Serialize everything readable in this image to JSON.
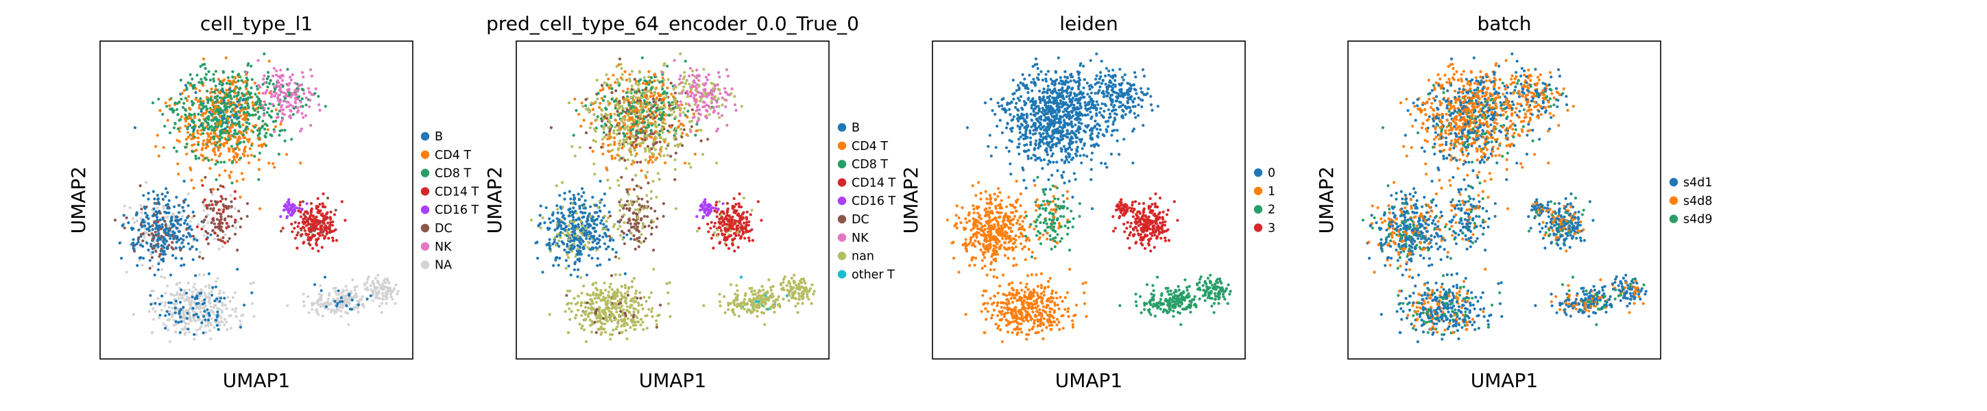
{
  "chart_data": [
    {
      "type": "scatter",
      "title": "cell_type_l1",
      "xlabel": "UMAP1",
      "ylabel": "UMAP2",
      "grid": false,
      "legend_placement": "right",
      "series": [
        {
          "name": "B",
          "color": "#1f77b4"
        },
        {
          "name": "CD4 T",
          "color": "#ff7f0e"
        },
        {
          "name": "CD8 T",
          "color": "#279e68"
        },
        {
          "name": "CD14 T",
          "color": "#d62728"
        },
        {
          "name": "CD16 T",
          "color": "#aa40fc"
        },
        {
          "name": "DC",
          "color": "#8c564b"
        },
        {
          "name": "NK",
          "color": "#e377c2"
        },
        {
          "name": "NA",
          "color": "#d3d3d3"
        }
      ]
    },
    {
      "type": "scatter",
      "title": "pred_cell_type_64_encoder_0.0_True_0",
      "xlabel": "UMAP1",
      "ylabel": "UMAP2",
      "grid": false,
      "legend_placement": "right",
      "series": [
        {
          "name": "B",
          "color": "#1f77b4"
        },
        {
          "name": "CD4 T",
          "color": "#ff7f0e"
        },
        {
          "name": "CD8 T",
          "color": "#279e68"
        },
        {
          "name": "CD14 T",
          "color": "#d62728"
        },
        {
          "name": "CD16 T",
          "color": "#aa40fc"
        },
        {
          "name": "DC",
          "color": "#8c564b"
        },
        {
          "name": "NK",
          "color": "#e377c2"
        },
        {
          "name": "nan",
          "color": "#b5bd61"
        },
        {
          "name": "other T",
          "color": "#17becf"
        }
      ]
    },
    {
      "type": "scatter",
      "title": "leiden",
      "xlabel": "UMAP1",
      "ylabel": "UMAP2",
      "grid": false,
      "legend_placement": "right",
      "series": [
        {
          "name": "0",
          "color": "#1f77b4"
        },
        {
          "name": "1",
          "color": "#ff7f0e"
        },
        {
          "name": "2",
          "color": "#279e68"
        },
        {
          "name": "3",
          "color": "#d62728"
        }
      ]
    },
    {
      "type": "scatter",
      "title": "batch",
      "xlabel": "UMAP1",
      "ylabel": "UMAP2",
      "grid": false,
      "legend_placement": "right",
      "series": [
        {
          "name": "s4d1",
          "color": "#1f77b4"
        },
        {
          "name": "s4d8",
          "color": "#ff7f0e"
        },
        {
          "name": "s4d9",
          "color": "#279e68"
        }
      ]
    }
  ]
}
